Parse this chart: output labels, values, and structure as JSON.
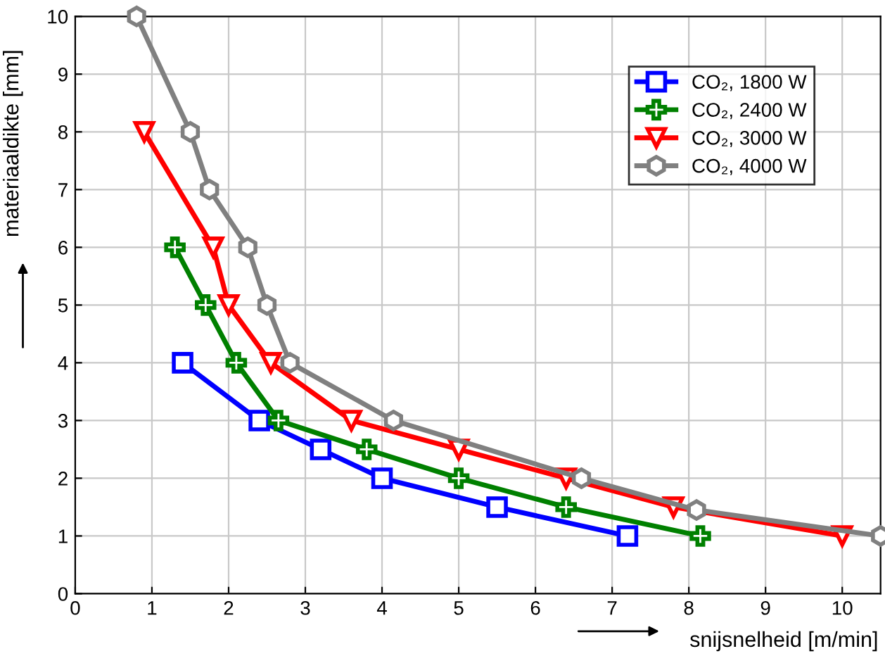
{
  "chart_data": {
    "type": "line",
    "xlabel": "snijsnelheid [m/min]",
    "ylabel": "materiaaldikte [mm]",
    "xlim": [
      0,
      10.5
    ],
    "ylim": [
      0,
      10
    ],
    "xticks": [
      0,
      1,
      2,
      3,
      4,
      5,
      6,
      7,
      8,
      9,
      10
    ],
    "yticks": [
      0,
      1,
      2,
      3,
      4,
      5,
      6,
      7,
      8,
      9,
      10
    ],
    "grid": true,
    "legend": "top right",
    "line_style": "solid",
    "series": [
      {
        "name": "CO₂, 1800 W",
        "color": "#0000ff",
        "marker": "square",
        "x": [
          1.4,
          2.4,
          3.2,
          4.0,
          5.5,
          7.2
        ],
        "values": [
          4,
          3,
          2.5,
          2,
          1.5,
          1
        ]
      },
      {
        "name": "CO₂, 2400 W",
        "color": "#008000",
        "marker": "cross",
        "x": [
          1.3,
          1.7,
          2.1,
          2.65,
          3.8,
          5.0,
          6.4,
          8.15
        ],
        "values": [
          6,
          5,
          4,
          3,
          2.5,
          2,
          1.5,
          1
        ]
      },
      {
        "name": "CO₂, 3000 W",
        "color": "#ff0000",
        "marker": "triangle",
        "x": [
          0.9,
          1.8,
          2.0,
          2.55,
          3.6,
          5.0,
          6.4,
          7.8,
          10.0
        ],
        "values": [
          8,
          6,
          5,
          4,
          3,
          2.5,
          2,
          1.5,
          1
        ]
      },
      {
        "name": "CO₂, 4000 W",
        "color": "#808080",
        "marker": "circle",
        "x": [
          0.8,
          1.5,
          1.75,
          2.25,
          2.5,
          2.8,
          4.15,
          6.6,
          8.1,
          10.5
        ],
        "values": [
          10,
          8,
          7,
          6,
          5,
          4,
          3,
          2,
          1.45,
          1
        ]
      }
    ]
  }
}
